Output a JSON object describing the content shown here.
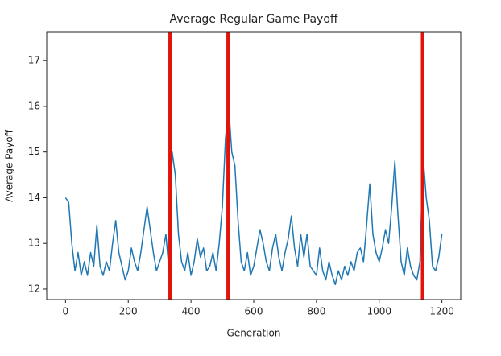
{
  "chart_data": {
    "type": "line",
    "title": "Average Regular Game Payoff",
    "x_label": "Generation",
    "y_label": "Average Payoff",
    "color": "#1f77b4",
    "x": [
      0,
      10,
      20,
      30,
      40,
      50,
      60,
      70,
      80,
      90,
      100,
      110,
      120,
      130,
      140,
      150,
      160,
      170,
      180,
      190,
      200,
      210,
      220,
      230,
      240,
      250,
      260,
      270,
      280,
      290,
      300,
      310,
      320,
      330,
      340,
      350,
      360,
      370,
      380,
      390,
      400,
      410,
      420,
      430,
      440,
      450,
      460,
      470,
      480,
      490,
      500,
      510,
      520,
      530,
      540,
      550,
      560,
      570,
      580,
      590,
      600,
      610,
      620,
      630,
      640,
      650,
      660,
      670,
      680,
      690,
      700,
      710,
      720,
      730,
      740,
      750,
      760,
      770,
      780,
      790,
      800,
      810,
      820,
      830,
      840,
      850,
      860,
      870,
      880,
      890,
      900,
      910,
      920,
      930,
      940,
      950,
      960,
      970,
      980,
      990,
      1000,
      1010,
      1020,
      1030,
      1040,
      1050,
      1060,
      1070,
      1080,
      1090,
      1100,
      1110,
      1120,
      1130,
      1140,
      1150,
      1160,
      1170,
      1180,
      1190,
      1200
    ],
    "values": [
      14.0,
      13.9,
      13.0,
      12.4,
      12.8,
      12.3,
      12.6,
      12.3,
      12.8,
      12.5,
      13.4,
      12.5,
      12.3,
      12.6,
      12.4,
      13.0,
      13.5,
      12.8,
      12.5,
      12.2,
      12.4,
      12.9,
      12.6,
      12.4,
      12.8,
      13.3,
      13.8,
      13.3,
      12.8,
      12.4,
      12.6,
      12.8,
      13.2,
      12.4,
      15.0,
      14.5,
      13.2,
      12.6,
      12.4,
      12.8,
      12.3,
      12.6,
      13.1,
      12.7,
      12.9,
      12.4,
      12.5,
      12.8,
      12.4,
      13.0,
      13.8,
      15.3,
      16.0,
      15.0,
      14.7,
      13.5,
      12.6,
      12.4,
      12.8,
      12.3,
      12.5,
      12.9,
      13.3,
      13.0,
      12.6,
      12.4,
      12.9,
      13.2,
      12.7,
      12.4,
      12.8,
      13.1,
      13.6,
      12.9,
      12.5,
      13.2,
      12.7,
      13.2,
      12.5,
      12.4,
      12.3,
      12.9,
      12.4,
      12.2,
      12.6,
      12.3,
      12.1,
      12.4,
      12.2,
      12.5,
      12.3,
      12.6,
      12.4,
      12.8,
      12.9,
      12.6,
      13.4,
      14.3,
      13.2,
      12.8,
      12.6,
      12.9,
      13.3,
      13.0,
      13.8,
      14.8,
      13.6,
      12.6,
      12.3,
      12.9,
      12.5,
      12.3,
      12.2,
      12.6,
      14.9,
      14.0,
      13.5,
      12.5,
      12.4,
      12.7,
      13.2
    ],
    "vlines": {
      "values": [
        333,
        518,
        1138
      ],
      "color": "#e3120b"
    },
    "xlim": [
      -60,
      1260
    ],
    "ylim": [
      11.77,
      17.62
    ],
    "xticks": [
      0,
      200,
      400,
      600,
      800,
      1000,
      1200
    ],
    "yticks": [
      12,
      13,
      14,
      15,
      16,
      17
    ]
  }
}
